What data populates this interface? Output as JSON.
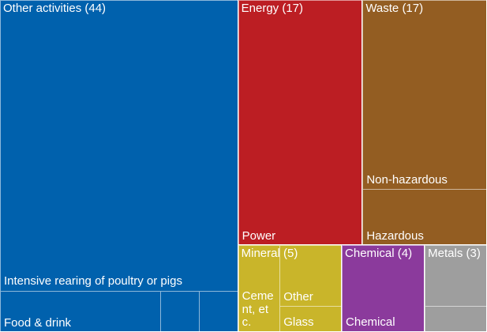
{
  "chart_data": {
    "type": "treemap",
    "groups": [
      {
        "name": "Other activities",
        "value": 44,
        "value_label": "(44)",
        "color": "#0061ad",
        "children": [
          {
            "name": "Intensive rearing of poultry or pigs",
            "value": 38.5
          },
          {
            "name": "Food & drink",
            "value": 3.7
          },
          {
            "name": null,
            "value": 0.9
          },
          {
            "name": null,
            "value": 0.9
          }
        ]
      },
      {
        "name": "Energy",
        "value": 17,
        "value_label": "(17)",
        "color": "#bc1e23",
        "children": [
          {
            "name": "Power",
            "value": 17
          }
        ]
      },
      {
        "name": "Waste",
        "value": 17,
        "value_label": "(17)",
        "color": "#935d22",
        "children": [
          {
            "name": "Non-hazardous",
            "value": 13.1
          },
          {
            "name": "Hazardous",
            "value": 3.9
          }
        ]
      },
      {
        "name": "Mineral",
        "value": 5,
        "value_label": "(5)",
        "color": "#c9b52a",
        "children": [
          {
            "name": "Cement, etc.",
            "value": 2
          },
          {
            "name": "Other",
            "value": 2.1
          },
          {
            "name": "Glass",
            "value": 0.9
          }
        ]
      },
      {
        "name": "Chemical",
        "value": 4,
        "value_label": "(4)",
        "color": "#8b3a9c",
        "children": [
          {
            "name": "Chemical",
            "value": 4
          }
        ]
      },
      {
        "name": "Metals",
        "value": 3,
        "value_label": "(3)",
        "color": "#9e9e9e",
        "children": [
          {
            "name": null,
            "value": 2.1
          },
          {
            "name": null,
            "value": 0.9
          }
        ]
      }
    ]
  }
}
